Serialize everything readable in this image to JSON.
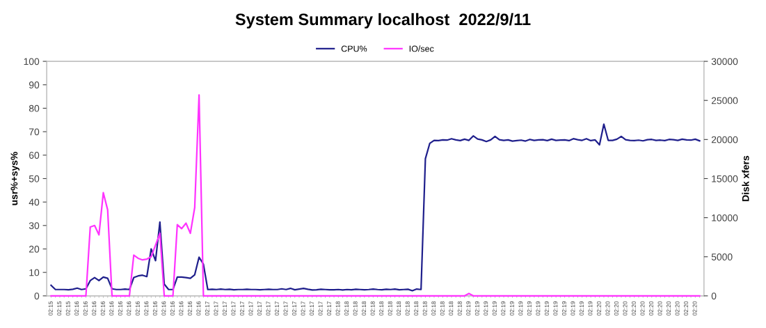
{
  "chart_data": {
    "type": "line",
    "title": "System Summary localhost  2022/9/11",
    "ylabel": "usr%+sys%",
    "y2label": "Disk xfers",
    "categories": [
      "02:15",
      null,
      "02:15",
      null,
      "02:15",
      null,
      "02:16",
      null,
      "02:16",
      null,
      "02:16",
      null,
      "02:16",
      null,
      "02:16",
      null,
      "02:16",
      null,
      "02:16",
      null,
      "02:16",
      null,
      "02:16",
      null,
      "02:16",
      null,
      "02:16",
      null,
      "02:16",
      null,
      "02:16",
      null,
      "02:16",
      null,
      "02:16",
      null,
      "02:17",
      null,
      "02:17",
      null,
      "02:17",
      null,
      "02:17",
      null,
      "02:17",
      null,
      "02:17",
      null,
      "02:17",
      null,
      "02:17",
      null,
      "02:17",
      null,
      "02:17",
      null,
      "02:17",
      null,
      "02:17",
      null,
      "02:17",
      null,
      "02:17",
      null,
      "02:17",
      null,
      "02:18",
      null,
      "02:18",
      null,
      "02:18",
      null,
      "02:18",
      null,
      "02:18",
      null,
      "02:18",
      null,
      "02:18",
      null,
      "02:18",
      null,
      "02:18",
      null,
      "02:18",
      null,
      "02:18",
      null,
      "02:18",
      null,
      "02:18",
      null,
      "02:18",
      null,
      "02:18",
      null,
      "02:19",
      null,
      "02:19",
      null,
      "02:19",
      null,
      "02:19",
      null,
      "02:19",
      null,
      "02:19",
      null,
      "02:19",
      null,
      "02:19",
      null,
      "02:19",
      null,
      "02:19",
      null,
      "02:19",
      null,
      "02:19",
      null,
      "02:19",
      null,
      "02:19",
      null,
      "02:19",
      null,
      "02:20",
      null,
      "02:20",
      null,
      "02:20",
      null,
      "02:20",
      null,
      "02:20",
      null,
      "02:20",
      null,
      "02:20",
      null,
      "02:20",
      null,
      "02:20",
      null,
      "02:20",
      null,
      "02:20",
      null,
      "02:20",
      null
    ],
    "series": [
      {
        "name": "CPU%",
        "color": "#1f1f8c",
        "values": [
          4.5,
          2.7,
          2.7,
          2.7,
          2.6,
          2.8,
          3.3,
          2.7,
          3.0,
          6.5,
          7.8,
          6.5,
          8.0,
          7.5,
          3.0,
          2.7,
          2.7,
          2.9,
          2.7,
          7.8,
          8.5,
          8.8,
          8.2,
          20,
          15,
          31.5,
          5.0,
          2.7,
          2.7,
          8.0,
          8.0,
          7.8,
          7.5,
          9.0,
          16.5,
          13.5,
          2.7,
          2.8,
          2.7,
          2.9,
          2.7,
          2.8,
          2.6,
          2.7,
          2.7,
          2.8,
          2.7,
          2.7,
          2.6,
          2.7,
          2.8,
          2.7,
          2.7,
          3.0,
          2.7,
          3.2,
          2.6,
          2.9,
          3.2,
          2.8,
          2.5,
          2.6,
          2.8,
          2.7,
          2.6,
          2.6,
          2.7,
          2.5,
          2.7,
          2.6,
          2.8,
          2.7,
          2.6,
          2.7,
          2.9,
          2.7,
          2.6,
          2.8,
          2.7,
          2.9,
          2.6,
          2.7,
          2.8,
          2.2,
          2.9,
          2.7,
          58.5,
          65.0,
          66.3,
          66.2,
          66.5,
          66.4,
          67.0,
          66.5,
          66.2,
          66.8,
          66.3,
          68.2,
          66.9,
          66.5,
          65.8,
          66.5,
          68.0,
          66.6,
          66.3,
          66.5,
          66.0,
          66.2,
          66.4,
          66.0,
          66.7,
          66.3,
          66.5,
          66.6,
          66.2,
          66.8,
          66.3,
          66.4,
          66.5,
          66.2,
          67.0,
          66.6,
          66.3,
          67.0,
          66.2,
          66.5,
          64.4,
          73.2,
          66.3,
          66.3,
          66.8,
          68.0,
          66.6,
          66.3,
          66.2,
          66.4,
          66.1,
          66.6,
          66.7,
          66.3,
          66.4,
          66.2,
          66.7,
          66.6,
          66.3,
          66.8,
          66.5,
          66.4,
          66.8,
          66.1
        ]
      },
      {
        "name": "IO/sec",
        "color": "#ff33ff",
        "axis": "y2",
        "values": [
          0,
          0,
          0,
          0,
          0,
          0,
          0,
          0,
          0,
          8800,
          9000,
          7800,
          13200,
          11000,
          0,
          0,
          0,
          0,
          0,
          5200,
          4800,
          4600,
          4700,
          5000,
          6500,
          8000,
          0,
          0,
          0,
          9100,
          8600,
          9300,
          8000,
          11300,
          25700,
          0,
          0,
          0,
          0,
          0,
          0,
          0,
          0,
          0,
          0,
          0,
          0,
          0,
          0,
          0,
          0,
          0,
          0,
          0,
          0,
          0,
          0,
          0,
          0,
          0,
          0,
          0,
          0,
          0,
          0,
          0,
          0,
          0,
          0,
          0,
          0,
          0,
          0,
          0,
          0,
          0,
          0,
          0,
          0,
          0,
          0,
          0,
          0,
          0,
          0,
          0,
          0,
          0,
          0,
          0,
          0,
          0,
          0,
          0,
          0,
          0,
          300,
          0,
          0,
          0,
          0,
          0,
          0,
          0,
          0,
          0,
          0,
          0,
          0,
          0,
          0,
          0,
          0,
          0,
          0,
          0,
          0,
          0,
          0,
          0,
          0,
          0,
          0,
          0,
          0,
          0,
          0,
          0,
          0,
          0,
          0,
          0,
          0,
          0,
          0,
          0,
          0,
          0,
          0,
          0,
          0,
          0,
          0,
          0,
          0,
          0,
          0,
          0,
          0,
          0
        ]
      }
    ],
    "ylim": [
      0,
      100
    ],
    "yticks": [
      0,
      10,
      20,
      30,
      40,
      50,
      60,
      70,
      80,
      90,
      100
    ],
    "y2lim": [
      0,
      30000
    ],
    "y2ticks": [
      0,
      5000,
      10000,
      15000,
      20000,
      25000,
      30000
    ],
    "grid": false,
    "legend": "top",
    "marker": "none",
    "line_style": "solid"
  }
}
